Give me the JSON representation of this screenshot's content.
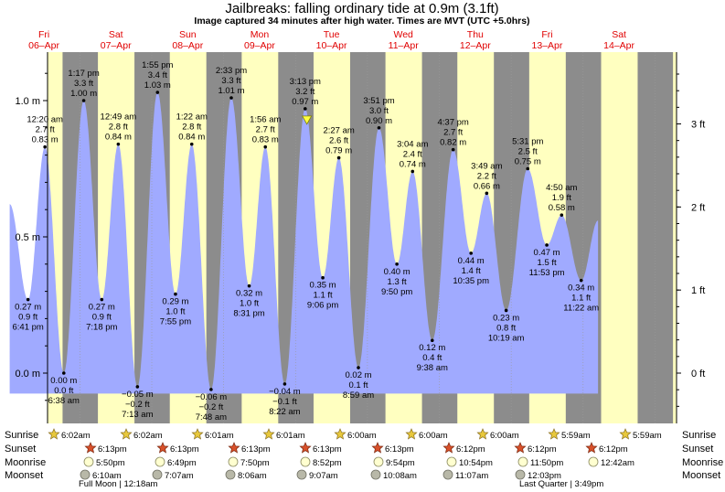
{
  "header": {
    "title": "Jailbreaks: falling  ordinary tide at 0.9m (3.1ft)",
    "subtitle": "Image captured 34 minutes after high water. Times are MVT (UTC +5.0hrs)"
  },
  "days": [
    {
      "dow": "Fri",
      "date": "06–Apr"
    },
    {
      "dow": "Sat",
      "date": "07–Apr"
    },
    {
      "dow": "Sun",
      "date": "08–Apr"
    },
    {
      "dow": "Mon",
      "date": "09–Apr"
    },
    {
      "dow": "Tue",
      "date": "10–Apr"
    },
    {
      "dow": "Wed",
      "date": "11–Apr"
    },
    {
      "dow": "Thu",
      "date": "12–Apr"
    },
    {
      "dow": "Fri",
      "date": "13–Apr"
    },
    {
      "dow": "Sat",
      "date": "14–Apr"
    }
  ],
  "axes": {
    "left_ticks": [
      "1.0 m",
      "0.5 m",
      "0.0 m"
    ],
    "right_ticks": [
      "3 ft",
      "2 ft",
      "1 ft",
      "0 ft"
    ]
  },
  "chart_data": {
    "type": "area",
    "x_unit": "days from 06-Apr 00:00 MVT",
    "y_unit": "m",
    "ylim": [
      -0.12,
      1.17
    ],
    "series_color": "#a0aaff",
    "extremes": [
      {
        "t": 0.2785,
        "h": 0.27,
        "l1": "0.27 m",
        "l2": "0.9 ft",
        "l3": "6:41 pm",
        "type": "low"
      },
      {
        "t": 0.5139,
        "h": 0.83,
        "l1": "12:20 am",
        "l2": "2.7 ft",
        "l3": "0.83 m",
        "type": "high"
      },
      {
        "t": 0.7764,
        "h": 0.0,
        "l1": "0.00 m",
        "l2": "0.0 ft",
        "l3": "6:38 am",
        "type": "low"
      },
      {
        "t": 1.0535,
        "h": 1.0,
        "l1": "1:17 pm",
        "l2": "3.3 ft",
        "l3": "1.00 m",
        "type": "high"
      },
      {
        "t": 1.3042,
        "h": 0.27,
        "l1": "0.27 m",
        "l2": "0.9 ft",
        "l3": "7:18 pm",
        "type": "low"
      },
      {
        "t": 1.534,
        "h": 0.84,
        "l1": "12:49 am",
        "l2": "2.8 ft",
        "l3": "0.84 m",
        "type": "high"
      },
      {
        "t": 1.8007,
        "h": -0.05,
        "l1": "−0.05 m",
        "l2": "−0.2 ft",
        "l3": "7:13 am",
        "type": "low"
      },
      {
        "t": 2.0799,
        "h": 1.03,
        "l1": "1:55 pm",
        "l2": "3.4 ft",
        "l3": "1.03 m",
        "type": "high"
      },
      {
        "t": 2.3299,
        "h": 0.29,
        "l1": "0.29 m",
        "l2": "1.0 ft",
        "l3": "7:55 pm",
        "type": "low"
      },
      {
        "t": 2.5563,
        "h": 0.84,
        "l1": "1:22 am",
        "l2": "2.8 ft",
        "l3": "0.84 m",
        "type": "high"
      },
      {
        "t": 2.825,
        "h": -0.06,
        "l1": "−0.06 m",
        "l2": "−0.2 ft",
        "l3": "7:48 am",
        "type": "low"
      },
      {
        "t": 3.1063,
        "h": 1.01,
        "l1": "2:33 pm",
        "l2": "3.3 ft",
        "l3": "1.01 m",
        "type": "high"
      },
      {
        "t": 3.3549,
        "h": 0.32,
        "l1": "0.32 m",
        "l2": "1.0 ft",
        "l3": "8:31 pm",
        "type": "low"
      },
      {
        "t": 3.5799,
        "h": 0.83,
        "l1": "1:56 am",
        "l2": "2.7 ft",
        "l3": "0.83 m",
        "type": "high"
      },
      {
        "t": 3.8493,
        "h": -0.04,
        "l1": "−0.04 m",
        "l2": "−0.1 ft",
        "l3": "8:22 am",
        "type": "low"
      },
      {
        "t": 4.134,
        "h": 0.97,
        "l1": "3:13 pm",
        "l2": "3.2 ft",
        "l3": "0.97 m",
        "type": "high"
      },
      {
        "t": 4.3792,
        "h": 0.35,
        "l1": "0.35 m",
        "l2": "1.1 ft",
        "l3": "9:06 pm",
        "type": "low"
      },
      {
        "t": 4.6021,
        "h": 0.79,
        "l1": "2:27 am",
        "l2": "2.6 ft",
        "l3": "0.79 m",
        "type": "high"
      },
      {
        "t": 4.8743,
        "h": 0.02,
        "l1": "0.02 m",
        "l2": "0.1 ft",
        "l3": "8:59 am",
        "type": "low"
      },
      {
        "t": 5.1604,
        "h": 0.9,
        "l1": "3:51 pm",
        "l2": "3.0 ft",
        "l3": "0.90 m",
        "type": "high"
      },
      {
        "t": 5.4097,
        "h": 0.4,
        "l1": "0.40 m",
        "l2": "1.3 ft",
        "l3": "9:50 pm",
        "type": "low"
      },
      {
        "t": 5.6278,
        "h": 0.74,
        "l1": "3:04 am",
        "l2": "2.4 ft",
        "l3": "0.74 m",
        "type": "high"
      },
      {
        "t": 5.9014,
        "h": 0.12,
        "l1": "0.12 m",
        "l2": "0.4 ft",
        "l3": "9:38 am",
        "type": "low"
      },
      {
        "t": 6.1924,
        "h": 0.82,
        "l1": "4:37 pm",
        "l2": "2.7 ft",
        "l3": "0.82 m",
        "type": "high"
      },
      {
        "t": 6.441,
        "h": 0.44,
        "l1": "0.44 m",
        "l2": "1.4 ft",
        "l3": "10:35 pm",
        "type": "low"
      },
      {
        "t": 6.659,
        "h": 0.66,
        "l1": "3:49 am",
        "l2": "2.2 ft",
        "l3": "0.66 m",
        "type": "high"
      },
      {
        "t": 6.9299,
        "h": 0.23,
        "l1": "0.23 m",
        "l2": "0.8 ft",
        "l3": "10:19 am",
        "type": "low"
      },
      {
        "t": 7.2299,
        "h": 0.75,
        "l1": "5:31 pm",
        "l2": "2.5 ft",
        "l3": "0.75 m",
        "type": "high"
      },
      {
        "t": 7.4951,
        "h": 0.47,
        "l1": "0.47 m",
        "l2": "1.5 ft",
        "l3": "11:53 pm",
        "type": "low"
      },
      {
        "t": 7.7014,
        "h": 0.58,
        "l1": "4:50 am",
        "l2": "1.9 ft",
        "l3": "0.58 m",
        "type": "high"
      },
      {
        "t": 7.9736,
        "h": 0.34,
        "l1": "0.34 m",
        "l2": "1.1 ft",
        "l3": "11:22 am",
        "type": "low"
      }
    ],
    "current_marker": {
      "t": 4.1576,
      "h": 0.93
    }
  },
  "astro": {
    "row_labels": [
      "Sunrise",
      "Sunset",
      "Moonrise",
      "Moonset"
    ],
    "sunrise": [
      "6:02am",
      "6:02am",
      "6:01am",
      "6:01am",
      "6:00am",
      "6:00am",
      "6:00am",
      "5:59am",
      "5:59am"
    ],
    "sunset": [
      "6:13pm",
      "6:13pm",
      "6:13pm",
      "6:13pm",
      "6:13pm",
      "6:12pm",
      "6:12pm",
      "6:12pm"
    ],
    "moonrise": [
      "5:50pm",
      "6:49pm",
      "7:50pm",
      "8:52pm",
      "9:54pm",
      "10:54pm",
      "11:50pm",
      "12:42am"
    ],
    "moonset": [
      "6:10am",
      "7:07am",
      "8:06am",
      "9:07am",
      "10:08am",
      "11:07am",
      "12:03pm"
    ],
    "phases": [
      "Full Moon | 12:18am",
      "Last Quarter | 3:49pm"
    ]
  },
  "colors": {
    "night": "#8c8c8c",
    "day": "#ffffc0",
    "water": "#a0aaff",
    "sun_marker": "#e8c83c",
    "sunset_marker": "#d8502a",
    "moon_marker": "#ffffd0",
    "moonset_marker": "#b8b8a8",
    "day_label": "#e00000"
  }
}
